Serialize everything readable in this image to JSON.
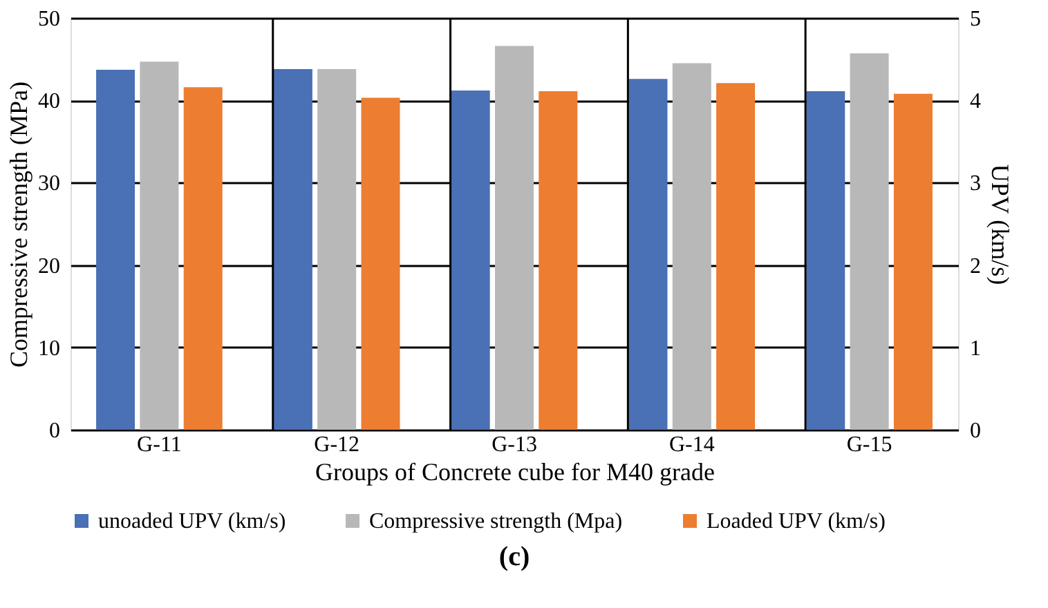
{
  "chart_data": {
    "type": "bar",
    "title": "(c)",
    "categories": [
      "G-11",
      "G-12",
      "G-13",
      "G-14",
      "G-15"
    ],
    "xlabel": "Groups of Concrete cube for M40 grade",
    "ylabel": "Compressive strength (MPa)",
    "y2label": "UPV (km/s)",
    "series": [
      {
        "name": "unoaded UPV (km/s)",
        "color": "#4a70b5",
        "axis": "y2",
        "values": [
          4.37,
          4.38,
          4.12,
          4.26,
          4.11
        ]
      },
      {
        "name": "Compressive strength (Mpa)",
        "color": "#b8b8b8",
        "values": [
          44.7,
          43.8,
          46.6,
          44.5,
          45.7
        ]
      },
      {
        "name": "Loaded UPV (km/s)",
        "color": "#ed7d31",
        "axis": "y2",
        "values": [
          4.16,
          4.03,
          4.11,
          4.21,
          4.08
        ]
      }
    ],
    "ylim": [
      0,
      50
    ],
    "yticks": [
      0,
      10,
      20,
      30,
      40,
      50
    ],
    "y2lim": [
      0,
      5
    ],
    "y2ticks": [
      0,
      1,
      2,
      3,
      4,
      5
    ],
    "grid": true,
    "legend": "bottom"
  }
}
